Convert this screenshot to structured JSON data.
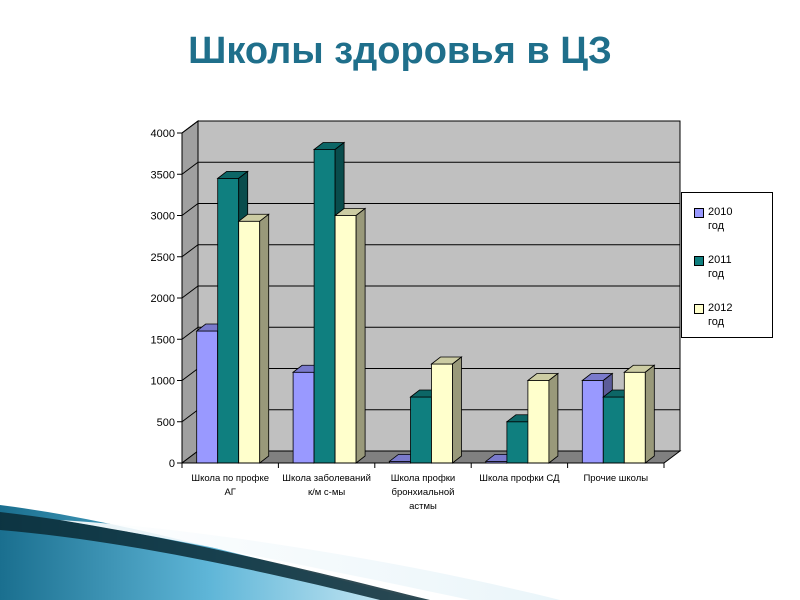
{
  "title": "Школы здоровья в ЦЗ",
  "chart_data": {
    "type": "bar",
    "categories": [
      [
        "Школа по профке",
        "АГ"
      ],
      [
        "Школа заболеваний",
        "к/м с-мы"
      ],
      [
        "Школа профки",
        "бронхиальной",
        "астмы"
      ],
      [
        "Школа профки СД"
      ],
      [
        "Прочие школы"
      ]
    ],
    "series": [
      {
        "name": "2010 год",
        "values": [
          1600,
          1100,
          20,
          20,
          1000
        ],
        "color": "#9999ff"
      },
      {
        "name": "2011 год",
        "values": [
          3450,
          3800,
          800,
          500,
          800
        ],
        "color": "#0f7f7f"
      },
      {
        "name": "2012 год",
        "values": [
          2930,
          3000,
          1200,
          1000,
          1100
        ],
        "color": "#ffffcc"
      }
    ],
    "yticks": [
      0,
      500,
      1000,
      1500,
      2000,
      2500,
      3000,
      3500,
      4000
    ],
    "ylim": [
      0,
      4000
    ],
    "grid": true,
    "legend": "right",
    "wall_color": "#c0c0c0",
    "floor_color": "#808080"
  },
  "legend_items": [
    {
      "line1": "2010",
      "line2": "год"
    },
    {
      "line1": "2011",
      "line2": "год"
    },
    {
      "line1": "2012",
      "line2": "год"
    }
  ]
}
